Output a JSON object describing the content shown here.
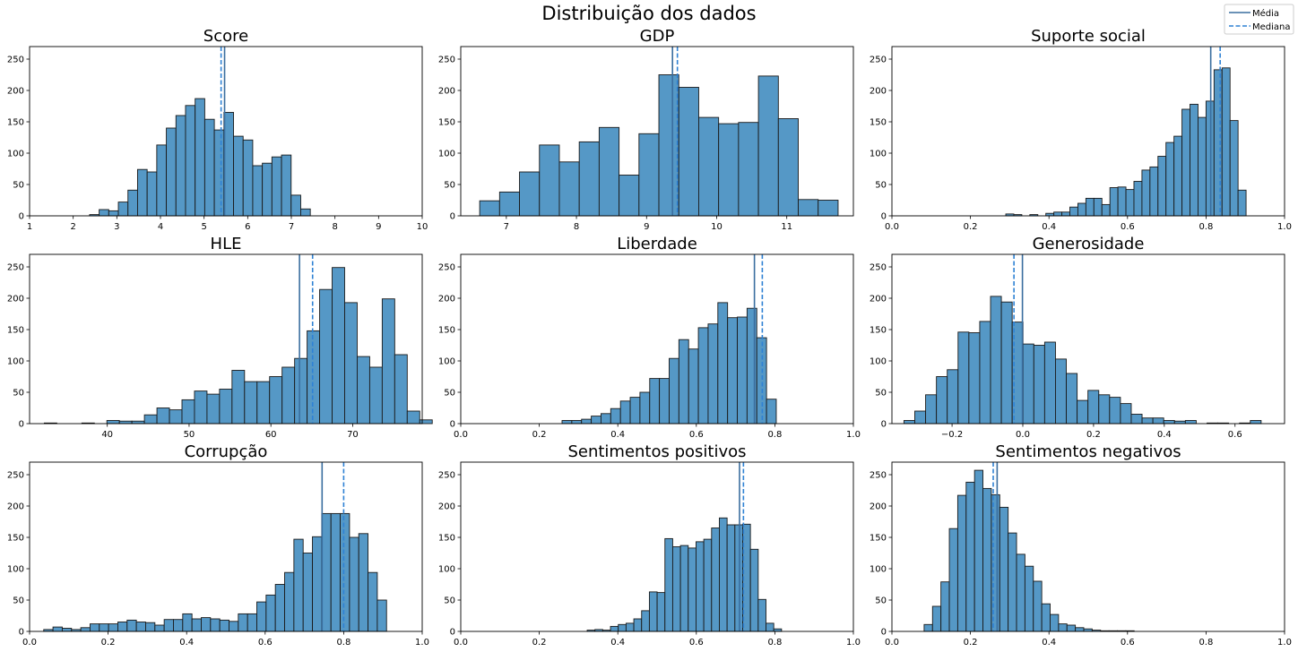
{
  "figure": {
    "suptitle": "Distribuição dos dados",
    "legend": {
      "placement": "top-right",
      "items": [
        {
          "label": "Média",
          "style": "solid"
        },
        {
          "label": "Mediana",
          "style": "dashed"
        }
      ]
    },
    "colors": {
      "bar": "#5598c6",
      "bar_edge": "#1a1a1a",
      "mean_line": "#3a6e9f",
      "median_line": "#2f82d4"
    }
  },
  "chart_data": [
    {
      "type": "bar",
      "title": "Score",
      "xlim": [
        1,
        10
      ],
      "ylim": [
        0,
        270
      ],
      "xticks": [
        1,
        2,
        3,
        4,
        5,
        6,
        7,
        8,
        9,
        10
      ],
      "xtick_labels": [
        "1",
        "2",
        "3",
        "4",
        "5",
        "6",
        "7",
        "8",
        "9",
        "10"
      ],
      "yticks": [
        0,
        50,
        100,
        150,
        200,
        250
      ],
      "bins": {
        "start": 2.375,
        "width": 0.22,
        "counts": [
          2,
          10,
          8,
          22,
          41,
          74,
          70,
          113,
          140,
          160,
          176,
          187,
          154,
          137,
          165,
          127,
          121,
          80,
          84,
          94,
          97,
          33,
          11
        ]
      },
      "mean": 5.47,
      "median": 5.39
    },
    {
      "type": "bar",
      "title": "GDP",
      "xlim": [
        6.35,
        11.95
      ],
      "ylim": [
        0,
        270
      ],
      "xticks": [
        7,
        8,
        9,
        10,
        11
      ],
      "xtick_labels": [
        "7",
        "8",
        "9",
        "10",
        "11"
      ],
      "yticks": [
        0,
        50,
        100,
        150,
        200,
        250
      ],
      "bins": {
        "start": 6.62,
        "width": 0.284,
        "counts": [
          24,
          38,
          70,
          113,
          86,
          118,
          141,
          65,
          131,
          225,
          205,
          157,
          147,
          149,
          223,
          155,
          26,
          25
        ]
      },
      "mean": 9.37,
      "median": 9.44
    },
    {
      "type": "bar",
      "title": "Suporte social",
      "xlim": [
        0,
        1
      ],
      "ylim": [
        0,
        270
      ],
      "xticks": [
        0,
        0.2,
        0.4,
        0.6,
        0.8,
        1.0
      ],
      "xtick_labels": [
        "0.0",
        "0.2",
        "0.4",
        "0.6",
        "0.8",
        "1.0"
      ],
      "yticks": [
        0,
        50,
        100,
        150,
        200,
        250
      ],
      "bins": {
        "start": 0.29,
        "width": 0.0204,
        "counts": [
          3,
          2,
          0,
          2,
          0,
          4,
          6,
          6,
          14,
          20,
          28,
          28,
          18,
          45,
          46,
          42,
          55,
          73,
          78,
          95,
          117,
          127,
          170,
          178,
          157,
          183,
          233,
          236,
          152,
          41
        ]
      },
      "mean": 0.812,
      "median": 0.836
    },
    {
      "type": "bar",
      "title": "HLE",
      "xlim": [
        30.5,
        78.5
      ],
      "ylim": [
        0,
        270
      ],
      "xticks": [
        40,
        50,
        60,
        70
      ],
      "xtick_labels": [
        "40",
        "50",
        "60",
        "70"
      ],
      "yticks": [
        0,
        50,
        100,
        150,
        200,
        250
      ],
      "bins": {
        "start": 32.3,
        "width": 1.53,
        "counts": [
          1,
          0,
          0,
          1,
          0,
          5,
          4,
          4,
          14,
          25,
          22,
          38,
          52,
          47,
          55,
          85,
          67,
          67,
          75,
          90,
          104,
          148,
          214,
          249,
          193,
          107,
          90,
          199,
          110,
          20,
          6
        ]
      },
      "mean": 63.5,
      "median": 65.1
    },
    {
      "type": "bar",
      "title": "Liberdade",
      "xlim": [
        0,
        1
      ],
      "ylim": [
        0,
        270
      ],
      "xticks": [
        0,
        0.2,
        0.4,
        0.6,
        0.8,
        1.0
      ],
      "xtick_labels": [
        "0.0",
        "0.2",
        "0.4",
        "0.6",
        "0.8",
        "1.0"
      ],
      "yticks": [
        0,
        50,
        100,
        150,
        200,
        250
      ],
      "bins": {
        "start": 0.258,
        "width": 0.0248,
        "counts": [
          5,
          5,
          7,
          12,
          16,
          24,
          36,
          42,
          50,
          72,
          72,
          104,
          134,
          119,
          153,
          159,
          193,
          169,
          170,
          184,
          137,
          39
        ]
      },
      "mean": 0.748,
      "median": 0.768
    },
    {
      "type": "bar",
      "title": "Generosidade",
      "xlim": [
        -0.37,
        0.74
      ],
      "ylim": [
        0,
        270
      ],
      "xticks": [
        -0.2,
        0.0,
        0.2,
        0.4,
        0.6
      ],
      "xtick_labels": [
        "−0.2",
        "0.0",
        "0.2",
        "0.4",
        "0.6"
      ],
      "yticks": [
        0,
        50,
        100,
        150,
        200,
        250
      ],
      "bins": {
        "start": -0.336,
        "width": 0.0306,
        "counts": [
          5,
          20,
          46,
          75,
          86,
          146,
          145,
          163,
          203,
          194,
          162,
          127,
          125,
          130,
          103,
          80,
          37,
          53,
          46,
          42,
          32,
          15,
          9,
          9,
          5,
          4,
          5,
          0,
          1,
          1,
          0,
          1,
          5
        ]
      },
      "mean": -0.001,
      "median": -0.025
    },
    {
      "type": "bar",
      "title": "Corrupção",
      "xlim": [
        0,
        1
      ],
      "ylim": [
        0,
        270
      ],
      "xticks": [
        0,
        0.2,
        0.4,
        0.6,
        0.8,
        1.0
      ],
      "xtick_labels": [
        "0.0",
        "0.2",
        "0.4",
        "0.6",
        "0.8",
        "1.0"
      ],
      "yticks": [
        0,
        50,
        100,
        150,
        200,
        250
      ],
      "bins": {
        "start": 0.036,
        "width": 0.0236,
        "counts": [
          3,
          7,
          5,
          3,
          6,
          12,
          12,
          12,
          15,
          18,
          15,
          14,
          10,
          19,
          19,
          28,
          20,
          22,
          20,
          18,
          16,
          28,
          28,
          47,
          58,
          75,
          94,
          147,
          125,
          151,
          188,
          188,
          188,
          150,
          156,
          94,
          50
        ]
      },
      "mean": 0.745,
      "median": 0.8
    },
    {
      "type": "bar",
      "title": "Sentimentos positivos",
      "xlim": [
        0,
        1
      ],
      "ylim": [
        0,
        270
      ],
      "xticks": [
        0,
        0.2,
        0.4,
        0.6,
        0.8,
        1.0
      ],
      "xtick_labels": [
        "0.0",
        "0.2",
        "0.4",
        "0.6",
        "0.8",
        "1.0"
      ],
      "yticks": [
        0,
        50,
        100,
        150,
        200,
        250
      ],
      "bins": {
        "start": 0.322,
        "width": 0.0198,
        "counts": [
          2,
          3,
          2,
          8,
          11,
          13,
          20,
          33,
          63,
          62,
          148,
          135,
          137,
          133,
          143,
          147,
          165,
          181,
          170,
          170,
          171,
          131,
          51,
          13,
          4
        ]
      },
      "mean": 0.71,
      "median": 0.72
    },
    {
      "type": "bar",
      "title": "Sentimentos negativos",
      "xlim": [
        0,
        1
      ],
      "ylim": [
        0,
        270
      ],
      "xticks": [
        0,
        0.2,
        0.4,
        0.6,
        0.8,
        1.0
      ],
      "xtick_labels": [
        "0.0",
        "0.2",
        "0.4",
        "0.6",
        "0.8",
        "1.0"
      ],
      "yticks": [
        0,
        50,
        100,
        150,
        200,
        250
      ],
      "bins": {
        "start": 0.082,
        "width": 0.0214,
        "counts": [
          11,
          40,
          79,
          164,
          217,
          238,
          257,
          228,
          218,
          198,
          157,
          123,
          104,
          80,
          44,
          27,
          12,
          10,
          6,
          4,
          2,
          1,
          1,
          1,
          1
        ]
      },
      "mean": 0.268,
      "median": 0.258
    }
  ]
}
